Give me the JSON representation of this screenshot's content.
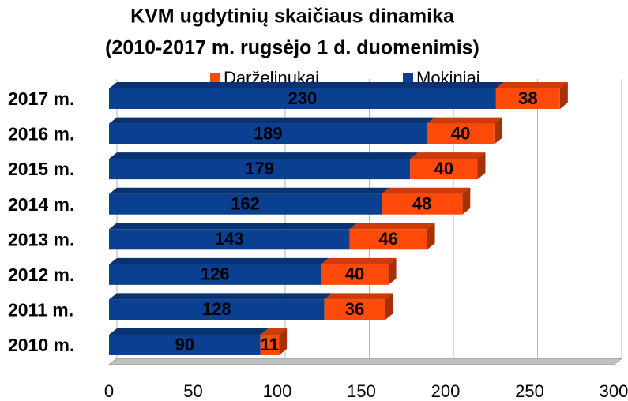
{
  "chart_data": {
    "type": "bar",
    "orientation": "horizontal",
    "stacked": true,
    "title": [
      "KVM ugdytinių skaičiaus dinamika",
      "(2010-2017 m. rugsėjo 1 d. duomenimis)"
    ],
    "categories": [
      "2017 m.",
      "2016 m.",
      "2015 m.",
      "2014 m.",
      "2013 m.",
      "2012 m.",
      "2011 m.",
      "2010 m."
    ],
    "series": [
      {
        "name": "Mokiniai",
        "color": "#0b3f8f",
        "values": [
          230,
          189,
          179,
          162,
          143,
          126,
          128,
          90
        ]
      },
      {
        "name": "Darželinukai",
        "color": "#ff4a0a",
        "values": [
          38,
          40,
          40,
          48,
          46,
          40,
          36,
          11
        ]
      }
    ],
    "xlim": [
      0,
      300
    ],
    "xticks": [
      0,
      50,
      100,
      150,
      200,
      250,
      300
    ],
    "grid": true,
    "legend": "top"
  }
}
